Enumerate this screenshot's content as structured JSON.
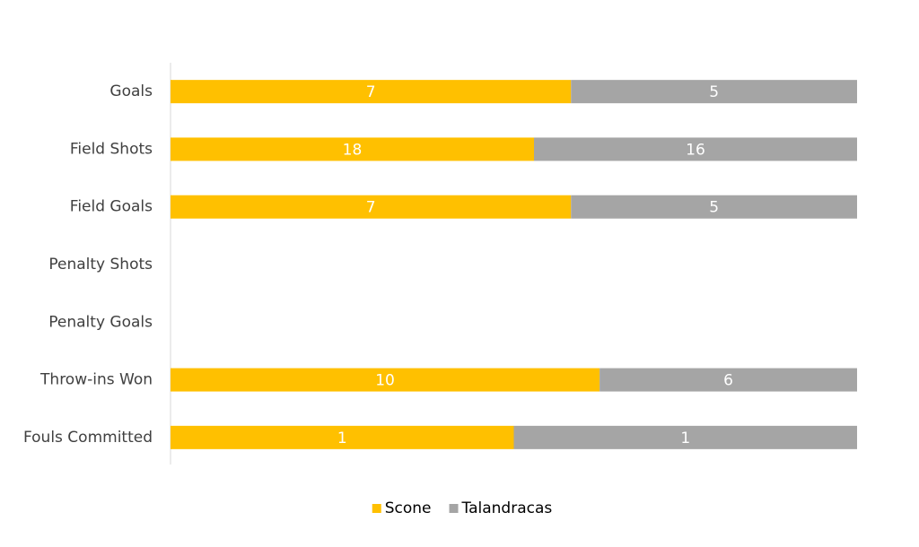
{
  "chart_data": {
    "type": "bar",
    "orientation": "horizontal",
    "stacking": "percent",
    "categories": [
      "Goals",
      "Field Shots",
      "Field Goals",
      "Penalty Shots",
      "Penalty Goals",
      "Throw-ins Won",
      "Fouls Committed"
    ],
    "series": [
      {
        "name": "Scone",
        "color": "#ffc000",
        "values": [
          7,
          18,
          7,
          null,
          null,
          10,
          1
        ]
      },
      {
        "name": "Talandracas",
        "color": "#a5a5a5",
        "values": [
          5,
          16,
          5,
          null,
          null,
          6,
          1
        ]
      }
    ],
    "legend": "bottom"
  }
}
